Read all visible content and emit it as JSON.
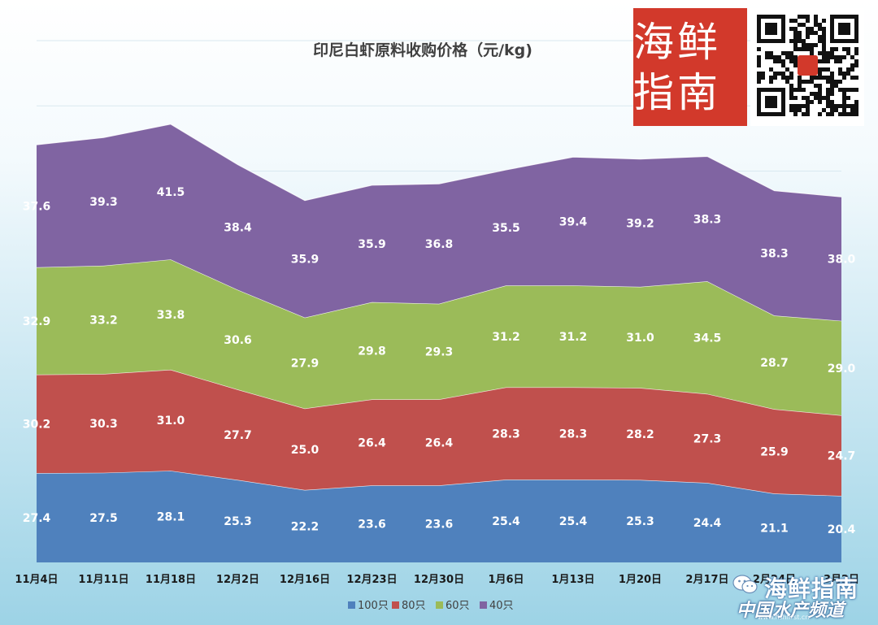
{
  "chart_data": {
    "type": "area",
    "stacked": true,
    "title": "印尼白虾原料收购价格（元/kg)",
    "categories": [
      "11月4日",
      "11月11日",
      "11月18日",
      "12月2日",
      "12月16日",
      "12月23日",
      "12月30日",
      "1月6日",
      "1月13日",
      "1月20日",
      "2月17日",
      "2月24日",
      "3月2日"
    ],
    "series": [
      {
        "name": "100只",
        "color": "#4f81bd",
        "values": [
          27.4,
          27.5,
          28.1,
          25.3,
          22.2,
          23.6,
          23.6,
          25.4,
          25.4,
          25.3,
          24.4,
          21.1,
          20.4
        ]
      },
      {
        "name": "80只",
        "color": "#c0504d",
        "values": [
          30.2,
          30.3,
          31.0,
          27.7,
          25.0,
          26.4,
          26.4,
          28.3,
          28.3,
          28.2,
          27.3,
          25.9,
          24.7
        ]
      },
      {
        "name": "60只",
        "color": "#9bbb59",
        "values": [
          32.9,
          33.2,
          33.8,
          30.6,
          27.9,
          29.8,
          29.3,
          31.2,
          31.2,
          31.0,
          34.5,
          28.7,
          29.0
        ]
      },
      {
        "name": "40只",
        "color": "#8064a2",
        "values": [
          37.6,
          39.3,
          41.5,
          38.4,
          35.9,
          35.9,
          36.8,
          35.5,
          39.4,
          39.2,
          38.3,
          38.3,
          38.0
        ]
      }
    ],
    "ylim": [
      0,
      160
    ],
    "legend": "bottom",
    "grid": true,
    "xlabel": "",
    "ylabel": ""
  },
  "brand": {
    "logo_text": "海鲜指南",
    "watermark_name": "海鲜指南",
    "watermark_sub": "中国水产频道",
    "watermark_url": "www.fishfirst.cn"
  },
  "colors": {
    "background_top": "#ffffff",
    "background_bottom": "#9dd3e6",
    "logo_red": "#d2392b"
  }
}
